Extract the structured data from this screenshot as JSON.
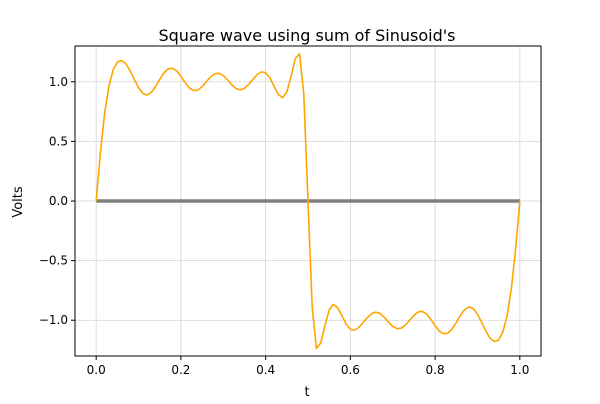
{
  "chart_data": {
    "type": "line",
    "title": "Square wave using sum of Sinusoid's",
    "xlabel": "t",
    "ylabel": "Volts",
    "xlim": [
      -0.05,
      1.05
    ],
    "ylim": [
      -1.3,
      1.3
    ],
    "xticks": [
      0.0,
      0.2,
      0.4,
      0.6,
      0.8,
      1.0
    ],
    "xtick_labels": [
      "0.0",
      "0.2",
      "0.4",
      "0.6",
      "0.8",
      "1.0"
    ],
    "yticks": [
      1.0,
      0.5,
      0.0,
      -0.5,
      -1.0
    ],
    "ytick_labels": [
      "1.0",
      "0.5",
      "0.0",
      "−0.5",
      "−1.0"
    ],
    "grid": true,
    "series": [
      {
        "color": "#808080",
        "x": [
          0.0,
          1.0
        ],
        "y": [
          0.0,
          0.0
        ]
      },
      {
        "color": "#ffa500",
        "x": [
          0.0,
          0.01,
          0.02,
          0.03,
          0.04,
          0.05,
          0.06,
          0.07,
          0.08,
          0.09,
          0.1,
          0.11,
          0.12,
          0.13,
          0.14,
          0.15,
          0.16,
          0.17,
          0.18,
          0.19,
          0.2,
          0.21,
          0.22,
          0.23,
          0.24,
          0.25,
          0.26,
          0.27,
          0.28,
          0.29,
          0.3,
          0.31,
          0.32,
          0.33,
          0.34,
          0.35,
          0.36,
          0.37,
          0.38,
          0.39,
          0.4,
          0.41,
          0.42,
          0.43,
          0.44,
          0.45,
          0.46,
          0.47,
          0.48,
          0.49,
          0.5,
          0.51,
          0.52,
          0.53,
          0.54,
          0.55,
          0.56,
          0.57,
          0.58,
          0.59,
          0.6,
          0.61,
          0.62,
          0.63,
          0.64,
          0.65,
          0.66,
          0.67,
          0.68,
          0.69,
          0.7,
          0.71,
          0.72,
          0.73,
          0.74,
          0.75,
          0.76,
          0.77,
          0.78,
          0.79,
          0.8,
          0.81,
          0.82,
          0.83,
          0.84,
          0.85,
          0.86,
          0.87,
          0.88,
          0.89,
          0.9,
          0.91,
          0.92,
          0.93,
          0.94,
          0.95,
          0.96,
          0.97,
          0.98,
          0.99,
          1.0
        ],
        "y": [
          0.0,
          0.406,
          0.736,
          0.963,
          1.099,
          1.166,
          1.178,
          1.152,
          1.092,
          1.019,
          0.95,
          0.902,
          0.888,
          0.91,
          0.958,
          1.02,
          1.075,
          1.109,
          1.113,
          1.091,
          1.046,
          0.993,
          0.948,
          0.926,
          0.93,
          0.959,
          1.0,
          1.041,
          1.067,
          1.071,
          1.052,
          1.016,
          0.975,
          0.943,
          0.932,
          0.945,
          0.978,
          1.02,
          1.06,
          1.083,
          1.076,
          1.033,
          0.961,
          0.894,
          0.866,
          0.914,
          1.046,
          1.192,
          1.236,
          0.898,
          0.0,
          -0.898,
          -1.236,
          -1.192,
          -1.046,
          -0.914,
          -0.866,
          -0.894,
          -0.961,
          -1.033,
          -1.076,
          -1.083,
          -1.06,
          -1.02,
          -0.978,
          -0.945,
          -0.932,
          -0.943,
          -0.975,
          -1.016,
          -1.052,
          -1.071,
          -1.067,
          -1.041,
          -1.0,
          -0.959,
          -0.93,
          -0.926,
          -0.948,
          -0.993,
          -1.046,
          -1.091,
          -1.113,
          -1.109,
          -1.075,
          -1.02,
          -0.958,
          -0.91,
          -0.888,
          -0.902,
          -0.95,
          -1.019,
          -1.092,
          -1.152,
          -1.178,
          -1.166,
          -1.099,
          -0.963,
          -0.736,
          -0.406,
          0.0
        ]
      }
    ]
  }
}
